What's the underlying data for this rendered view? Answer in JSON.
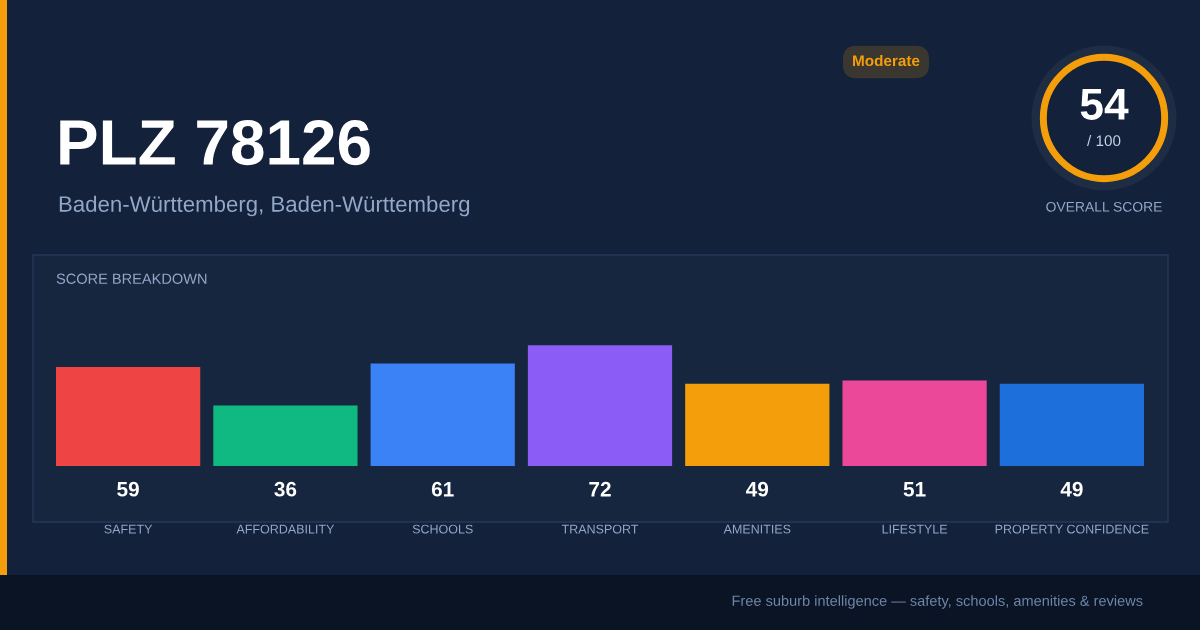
{
  "chart_data": {
    "type": "bar",
    "title": "PLZ 78126",
    "subtitle": "Baden-Württemberg, Baden-Württemberg",
    "categories": [
      "SAFETY",
      "AFFORDABILITY",
      "SCHOOLS",
      "TRANSPORT",
      "AMENITIES",
      "LIFESTYLE",
      "PROPERTY CONFIDENCE"
    ],
    "values": [
      59,
      36,
      61,
      72,
      49,
      51,
      49
    ],
    "colors": [
      "#ef4444",
      "#10b981",
      "#3b82f6",
      "#8b5cf6",
      "#f59e0b",
      "#ec4899",
      "#1d6fdc"
    ],
    "tick_labels": "x",
    "data_labels": true,
    "grid": false,
    "legend": false,
    "annotations": [
      "SCORE BREAKDOWN",
      "Moderate",
      "54",
      "/ 100",
      "OVERALL SCORE",
      "Free suburb intelligence — safety, schools, amenities & reviews"
    ]
  }
}
